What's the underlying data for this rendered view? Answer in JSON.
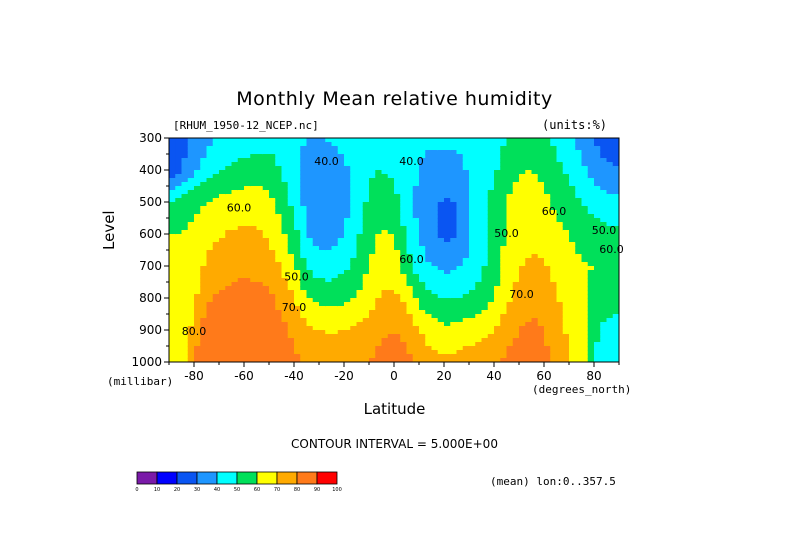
{
  "chart_data": {
    "type": "heatmap",
    "title": "Monthly Mean relative humidity",
    "dataset": "[RHUM_1950-12_NCEP.nc]",
    "units": "(units:%)",
    "xlabel": "Latitude",
    "x_units": "(degrees_north)",
    "ylabel": "Level",
    "y_units": "(millibar)",
    "xlim": [
      -90,
      90
    ],
    "ylim": [
      300,
      1000
    ],
    "x_ticks": [
      -80,
      -60,
      -40,
      -20,
      0,
      20,
      40,
      60,
      80
    ],
    "y_ticks": [
      300,
      400,
      500,
      600,
      700,
      800,
      900,
      1000
    ],
    "contour_interval_text": "CONTOUR INTERVAL = 5.000E+00",
    "subset_text": "(mean) lon:0..357.5",
    "contour_labels": [
      "40.0",
      "40.0",
      "60.0",
      "50.0",
      "60.0",
      "50.0",
      "60.0",
      "70.0",
      "70.0",
      "80.0",
      "60.0",
      "50.0"
    ],
    "colorbar": {
      "ticks": [
        "0",
        "10",
        "20",
        "30",
        "40",
        "50",
        "60",
        "70",
        "80",
        "90",
        "100"
      ],
      "colors": [
        "#7a1aa8",
        "#0000ff",
        "#0a55f2",
        "#1e96ff",
        "#00ffff",
        "#00e05a",
        "#ffff00",
        "#ffaa00",
        "#ff7a1a",
        "#ff0000"
      ]
    },
    "columns": [
      {
        "lat": -90,
        "h": [
          20,
          18,
          50,
          60,
          67,
          67,
          67,
          67
        ]
      },
      {
        "lat": -85,
        "h": [
          28,
          28,
          55,
          60,
          62,
          60,
          58,
          62
        ]
      },
      {
        "lat": -80,
        "h": [
          32,
          38,
          58,
          62,
          63,
          68,
          75,
          82
        ]
      },
      {
        "lat": -75,
        "h": [
          37,
          45,
          60,
          66,
          72,
          79,
          84,
          88
        ]
      },
      {
        "lat": -70,
        "h": [
          41,
          50,
          62,
          69,
          75,
          81,
          85,
          89
        ]
      },
      {
        "lat": -65,
        "h": [
          42,
          52,
          64,
          71,
          77,
          83,
          86,
          89
        ]
      },
      {
        "lat": -60,
        "h": [
          44,
          54,
          65,
          72,
          78,
          84,
          87,
          90
        ]
      },
      {
        "lat": -55,
        "h": [
          46,
          55,
          65,
          71,
          77,
          83,
          86,
          88
        ]
      },
      {
        "lat": -50,
        "h": [
          46,
          55,
          63,
          69,
          75,
          82,
          85,
          86
        ]
      },
      {
        "lat": -45,
        "h": [
          44,
          49,
          56,
          62,
          69,
          77,
          83,
          85
        ]
      },
      {
        "lat": -40,
        "h": [
          42,
          42,
          47,
          54,
          61,
          70,
          78,
          82
        ]
      },
      {
        "lat": -35,
        "h": [
          40,
          37,
          37,
          40,
          50,
          61,
          72,
          78
        ]
      },
      {
        "lat": -30,
        "h": [
          40,
          35,
          33,
          34,
          45,
          57,
          70,
          77
        ]
      },
      {
        "lat": -25,
        "h": [
          41,
          36,
          33,
          35,
          45,
          56,
          69,
          77
        ]
      },
      {
        "lat": -20,
        "h": [
          43,
          38,
          36,
          40,
          48,
          57,
          70,
          77
        ]
      },
      {
        "lat": -15,
        "h": [
          46,
          43,
          44,
          48,
          53,
          60,
          72,
          79
        ]
      },
      {
        "lat": -10,
        "h": [
          48,
          49,
          52,
          56,
          60,
          66,
          75,
          80
        ]
      },
      {
        "lat": -5,
        "h": [
          47,
          50,
          55,
          61,
          66,
          71,
          78,
          83
        ]
      },
      {
        "lat": 0,
        "h": [
          45,
          48,
          53,
          60,
          65,
          72,
          80,
          85
        ]
      },
      {
        "lat": 5,
        "h": [
          43,
          44,
          45,
          48,
          55,
          67,
          77,
          83
        ]
      },
      {
        "lat": 10,
        "h": [
          41,
          40,
          37,
          39,
          45,
          57,
          70,
          77
        ]
      },
      {
        "lat": 15,
        "h": [
          41,
          38,
          33,
          33,
          40,
          52,
          65,
          74
        ]
      },
      {
        "lat": 20,
        "h": [
          42,
          37,
          29,
          27,
          37,
          49,
          62,
          72
        ]
      },
      {
        "lat": 25,
        "h": [
          42,
          37,
          30,
          30,
          39,
          50,
          63,
          73
        ]
      },
      {
        "lat": 30,
        "h": [
          44,
          41,
          38,
          38,
          42,
          51,
          65,
          75
        ]
      },
      {
        "lat": 35,
        "h": [
          46,
          45,
          46,
          47,
          48,
          54,
          67,
          77
        ]
      },
      {
        "lat": 40,
        "h": [
          44,
          48,
          53,
          54,
          55,
          60,
          70,
          79
        ]
      },
      {
        "lat": 45,
        "h": [
          50,
          56,
          60,
          61,
          63,
          68,
          76,
          82
        ]
      },
      {
        "lat": 50,
        "h": [
          54,
          59,
          63,
          65,
          69,
          74,
          80,
          84
        ]
      },
      {
        "lat": 55,
        "h": [
          55,
          60,
          64,
          67,
          72,
          77,
          82,
          85
        ]
      },
      {
        "lat": 60,
        "h": [
          52,
          57,
          63,
          66,
          71,
          76,
          80,
          83
        ]
      },
      {
        "lat": 65,
        "h": [
          48,
          52,
          58,
          62,
          67,
          71,
          74,
          76
        ]
      },
      {
        "lat": 70,
        "h": [
          43,
          48,
          54,
          60,
          63,
          66,
          68,
          71
        ]
      },
      {
        "lat": 75,
        "h": [
          36,
          42,
          50,
          57,
          61,
          61,
          63,
          66
        ]
      },
      {
        "lat": 80,
        "h": [
          30,
          36,
          46,
          55,
          60,
          58,
          52,
          50
        ]
      },
      {
        "lat": 85,
        "h": [
          24,
          32,
          44,
          53,
          58,
          56,
          47,
          44
        ]
      },
      {
        "lat": 90,
        "h": [
          22,
          30,
          42,
          52,
          57,
          54,
          45,
          42
        ]
      }
    ]
  }
}
